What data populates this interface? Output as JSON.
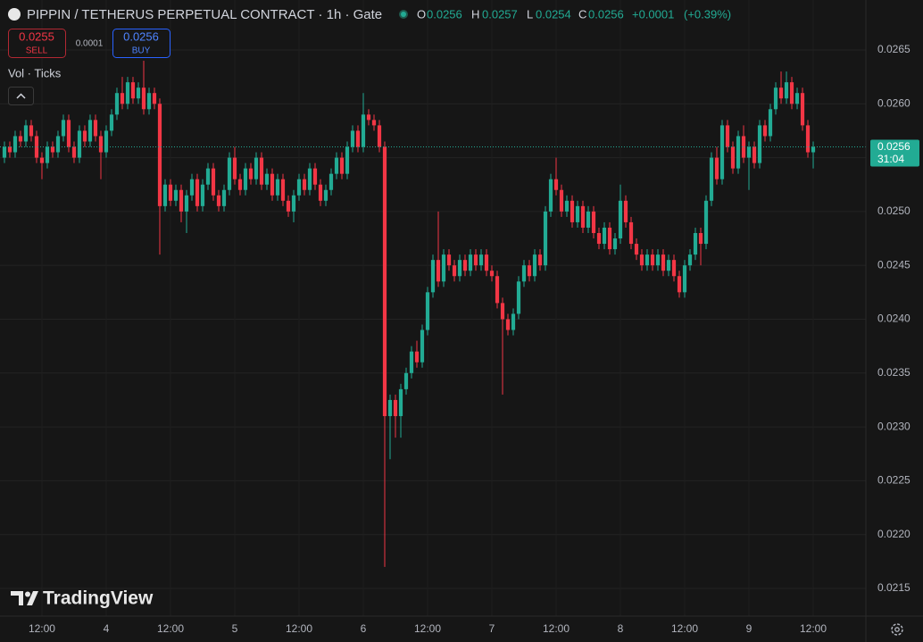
{
  "header": {
    "symbol_title": "PIPPIN / TETHERUS PERPETUAL CONTRACT · 1h · Gate",
    "legend_labels": [
      "O",
      "H",
      "L",
      "C"
    ],
    "legend_values": [
      0.0256,
      0.0257,
      0.0254,
      0.0256
    ],
    "change": "+0.0001",
    "change_pct": "(+0.39%)"
  },
  "trade": {
    "sell_price": 0.0255,
    "sell_label": "SELL",
    "spread": 0.0001,
    "buy_price": 0.0256,
    "buy_label": "BUY"
  },
  "indicators": {
    "label": "Vol · Ticks"
  },
  "branding": {
    "logo_text": "TradingView"
  },
  "chart_data": {
    "type": "candlestick",
    "up_color": "#22ab94",
    "down_color": "#f23645",
    "grid": true,
    "xlim": [
      -0.83,
      160.83
    ],
    "xticks": [
      {
        "value": 7,
        "label": "12:00"
      },
      {
        "value": 19,
        "label": "4"
      },
      {
        "value": 31,
        "label": "12:00"
      },
      {
        "value": 43,
        "label": "5"
      },
      {
        "value": 55,
        "label": "12:00"
      },
      {
        "value": 67,
        "label": "6"
      },
      {
        "value": 79,
        "label": "12:00"
      },
      {
        "value": 91,
        "label": "7"
      },
      {
        "value": 103,
        "label": "12:00"
      },
      {
        "value": 115,
        "label": "8"
      },
      {
        "value": 127,
        "label": "12:00"
      },
      {
        "value": 139,
        "label": "9"
      },
      {
        "value": 151,
        "label": "12:00"
      }
    ],
    "ylim": [
      0.021243,
      0.026964
    ],
    "yticks": [
      0.0215,
      {
        "value": 0.022,
        "label": "0.0220"
      },
      0.0225,
      {
        "value": 0.023,
        "label": "0.0230"
      },
      0.0235,
      {
        "value": 0.024,
        "label": "0.0240"
      },
      0.0245,
      {
        "value": 0.025,
        "label": "0.0250"
      },
      0.0255,
      {
        "value": 0.026,
        "label": "0.0260"
      },
      0.0265
    ],
    "last_price": 0.0256,
    "countdown": "31:04",
    "open": [
      0.0255,
      0.0256,
      0.02555,
      0.0257,
      0.02565,
      0.0258,
      0.0257,
      0.0255,
      0.02545,
      0.0256,
      0.02555,
      0.0257,
      0.02585,
      0.0256,
      0.0255,
      0.02575,
      0.02565,
      0.02585,
      0.0257,
      0.02555,
      0.02575,
      0.0259,
      0.0261,
      0.026,
      0.0262,
      0.02605,
      0.02615,
      0.02595,
      0.0261,
      0.026,
      0.02505,
      0.02525,
      0.0251,
      0.0252,
      0.025,
      0.02515,
      0.0253,
      0.02505,
      0.02525,
      0.0254,
      0.02515,
      0.02505,
      0.0252,
      0.0255,
      0.0253,
      0.0252,
      0.0254,
      0.0253,
      0.0255,
      0.02525,
      0.02535,
      0.02515,
      0.0253,
      0.0251,
      0.025,
      0.02515,
      0.0253,
      0.0252,
      0.0254,
      0.02525,
      0.0251,
      0.0252,
      0.02535,
      0.0255,
      0.02535,
      0.0256,
      0.02575,
      0.0256,
      0.0259,
      0.02585,
      0.0258,
      0.0256,
      0.0231,
      0.02325,
      0.0231,
      0.02335,
      0.0235,
      0.0237,
      0.0236,
      0.0239,
      0.02425,
      0.02455,
      0.02435,
      0.0246,
      0.0245,
      0.0244,
      0.02455,
      0.02445,
      0.0246,
      0.0245,
      0.0246,
      0.02445,
      0.0244,
      0.02415,
      0.024,
      0.0239,
      0.02405,
      0.02435,
      0.0245,
      0.0244,
      0.0246,
      0.0245,
      0.025,
      0.0253,
      0.0252,
      0.025,
      0.0251,
      0.0249,
      0.02505,
      0.02485,
      0.025,
      0.0248,
      0.0247,
      0.02485,
      0.02465,
      0.02475,
      0.0251,
      0.0249,
      0.0247,
      0.0246,
      0.0245,
      0.0246,
      0.0245,
      0.0246,
      0.02445,
      0.02455,
      0.0244,
      0.02425,
      0.0245,
      0.0246,
      0.0248,
      0.0247,
      0.0251,
      0.0255,
      0.0253,
      0.0258,
      0.0256,
      0.0254,
      0.0257,
      0.0255,
      0.0256,
      0.02545,
      0.0258,
      0.0257,
      0.02595,
      0.02615,
      0.02605,
      0.0262,
      0.026,
      0.0261,
      0.0258,
      0.02555
    ],
    "high": [
      0.02565,
      0.02565,
      0.02575,
      0.02575,
      0.02585,
      0.02585,
      0.02575,
      0.02555,
      0.02565,
      0.02565,
      0.02575,
      0.0259,
      0.0259,
      0.02565,
      0.0258,
      0.0258,
      0.0259,
      0.0259,
      0.02575,
      0.0258,
      0.02595,
      0.02615,
      0.02625,
      0.02625,
      0.02625,
      0.0262,
      0.0264,
      0.02615,
      0.02615,
      0.02605,
      0.0253,
      0.0253,
      0.02525,
      0.02525,
      0.0252,
      0.02535,
      0.02535,
      0.0253,
      0.02545,
      0.02545,
      0.0252,
      0.02525,
      0.02555,
      0.0256,
      0.02535,
      0.02545,
      0.02545,
      0.02555,
      0.02555,
      0.0254,
      0.0254,
      0.02535,
      0.02535,
      0.02515,
      0.0252,
      0.02535,
      0.02535,
      0.02545,
      0.02545,
      0.0253,
      0.02525,
      0.0254,
      0.02555,
      0.02555,
      0.02565,
      0.0258,
      0.0258,
      0.0261,
      0.02595,
      0.0259,
      0.02585,
      0.02565,
      0.0233,
      0.0233,
      0.0234,
      0.02355,
      0.02375,
      0.0238,
      0.02395,
      0.0243,
      0.0246,
      0.025,
      0.02465,
      0.02465,
      0.02455,
      0.0246,
      0.0246,
      0.02465,
      0.02465,
      0.02465,
      0.02465,
      0.0245,
      0.02445,
      0.0242,
      0.02405,
      0.0241,
      0.0244,
      0.02455,
      0.02455,
      0.02465,
      0.02465,
      0.02505,
      0.02535,
      0.0255,
      0.02525,
      0.02515,
      0.02515,
      0.0251,
      0.0251,
      0.02505,
      0.02505,
      0.02485,
      0.0249,
      0.0249,
      0.0248,
      0.02525,
      0.02515,
      0.02495,
      0.02475,
      0.02465,
      0.02465,
      0.02465,
      0.02465,
      0.02465,
      0.0246,
      0.0246,
      0.02445,
      0.02455,
      0.02465,
      0.02485,
      0.02485,
      0.02515,
      0.02555,
      0.0256,
      0.02585,
      0.02585,
      0.02565,
      0.02575,
      0.0258,
      0.02565,
      0.02565,
      0.02585,
      0.02585,
      0.026,
      0.0262,
      0.0263,
      0.0263,
      0.02625,
      0.02615,
      0.02615,
      0.02585,
      0.02565
    ],
    "low": [
      0.02545,
      0.0255,
      0.0255,
      0.0256,
      0.0256,
      0.02565,
      0.02545,
      0.0253,
      0.0254,
      0.0255,
      0.0255,
      0.02565,
      0.02555,
      0.02545,
      0.02545,
      0.0256,
      0.0256,
      0.02565,
      0.0253,
      0.0255,
      0.0257,
      0.02585,
      0.02595,
      0.02595,
      0.026,
      0.026,
      0.0259,
      0.0259,
      0.02595,
      0.0246,
      0.025,
      0.02505,
      0.02505,
      0.0249,
      0.0248,
      0.0251,
      0.025,
      0.025,
      0.0252,
      0.0251,
      0.025,
      0.025,
      0.02515,
      0.02525,
      0.02515,
      0.02515,
      0.02525,
      0.02525,
      0.0252,
      0.0252,
      0.0251,
      0.0251,
      0.02505,
      0.02495,
      0.0249,
      0.0251,
      0.02515,
      0.02515,
      0.0252,
      0.02505,
      0.02505,
      0.02515,
      0.0253,
      0.0253,
      0.0253,
      0.02555,
      0.02555,
      0.02555,
      0.0258,
      0.02575,
      0.02555,
      0.0217,
      0.0227,
      0.0229,
      0.0229,
      0.0233,
      0.02345,
      0.02355,
      0.02355,
      0.02385,
      0.0242,
      0.0243,
      0.0243,
      0.02445,
      0.02435,
      0.02435,
      0.0244,
      0.0244,
      0.02445,
      0.02445,
      0.0244,
      0.02435,
      0.0241,
      0.0233,
      0.02385,
      0.02385,
      0.024,
      0.0243,
      0.02435,
      0.02435,
      0.02445,
      0.02445,
      0.02495,
      0.02515,
      0.02495,
      0.02495,
      0.02485,
      0.02485,
      0.0248,
      0.0248,
      0.02475,
      0.02465,
      0.02465,
      0.0246,
      0.0246,
      0.0247,
      0.02485,
      0.02465,
      0.02455,
      0.02445,
      0.02445,
      0.02445,
      0.02445,
      0.0244,
      0.0244,
      0.02435,
      0.0242,
      0.0242,
      0.02445,
      0.02455,
      0.0245,
      0.02465,
      0.02505,
      0.02525,
      0.02525,
      0.02555,
      0.02535,
      0.02535,
      0.02545,
      0.0252,
      0.0254,
      0.0254,
      0.02565,
      0.02565,
      0.0259,
      0.026,
      0.026,
      0.02595,
      0.02595,
      0.02575,
      0.0255,
      0.0254
    ],
    "close": [
      0.0256,
      0.02555,
      0.0257,
      0.02565,
      0.0258,
      0.0257,
      0.0255,
      0.02545,
      0.0256,
      0.02555,
      0.0257,
      0.02585,
      0.0256,
      0.0255,
      0.02575,
      0.02565,
      0.02585,
      0.0257,
      0.02555,
      0.02575,
      0.0259,
      0.0261,
      0.026,
      0.0262,
      0.02605,
      0.02615,
      0.02595,
      0.0261,
      0.026,
      0.02505,
      0.02525,
      0.0251,
      0.0252,
      0.025,
      0.02515,
      0.0253,
      0.02505,
      0.02525,
      0.0254,
      0.02515,
      0.02505,
      0.0252,
      0.0255,
      0.0253,
      0.0252,
      0.0254,
      0.0253,
      0.0255,
      0.02525,
      0.02535,
      0.02515,
      0.0253,
      0.0251,
      0.025,
      0.02515,
      0.0253,
      0.0252,
      0.0254,
      0.02525,
      0.0251,
      0.0252,
      0.02535,
      0.0255,
      0.02535,
      0.0256,
      0.02575,
      0.0256,
      0.0259,
      0.02585,
      0.0258,
      0.0256,
      0.0231,
      0.02325,
      0.0231,
      0.02335,
      0.0235,
      0.0237,
      0.0236,
      0.0239,
      0.02425,
      0.02455,
      0.02435,
      0.0246,
      0.0245,
      0.0244,
      0.02455,
      0.02445,
      0.0246,
      0.0245,
      0.0246,
      0.02445,
      0.0244,
      0.02415,
      0.024,
      0.0239,
      0.02405,
      0.02435,
      0.0245,
      0.0244,
      0.0246,
      0.0245,
      0.025,
      0.0253,
      0.0252,
      0.025,
      0.0251,
      0.0249,
      0.02505,
      0.02485,
      0.025,
      0.0248,
      0.0247,
      0.02485,
      0.02465,
      0.02475,
      0.0251,
      0.0249,
      0.0247,
      0.0246,
      0.0245,
      0.0246,
      0.0245,
      0.0246,
      0.02445,
      0.02455,
      0.0244,
      0.02425,
      0.0245,
      0.0246,
      0.0248,
      0.0247,
      0.0251,
      0.0255,
      0.0253,
      0.0258,
      0.0256,
      0.0254,
      0.0257,
      0.0255,
      0.0256,
      0.02545,
      0.0258,
      0.0257,
      0.02595,
      0.02615,
      0.02605,
      0.0262,
      0.026,
      0.0261,
      0.0258,
      0.02555,
      0.0256
    ]
  }
}
